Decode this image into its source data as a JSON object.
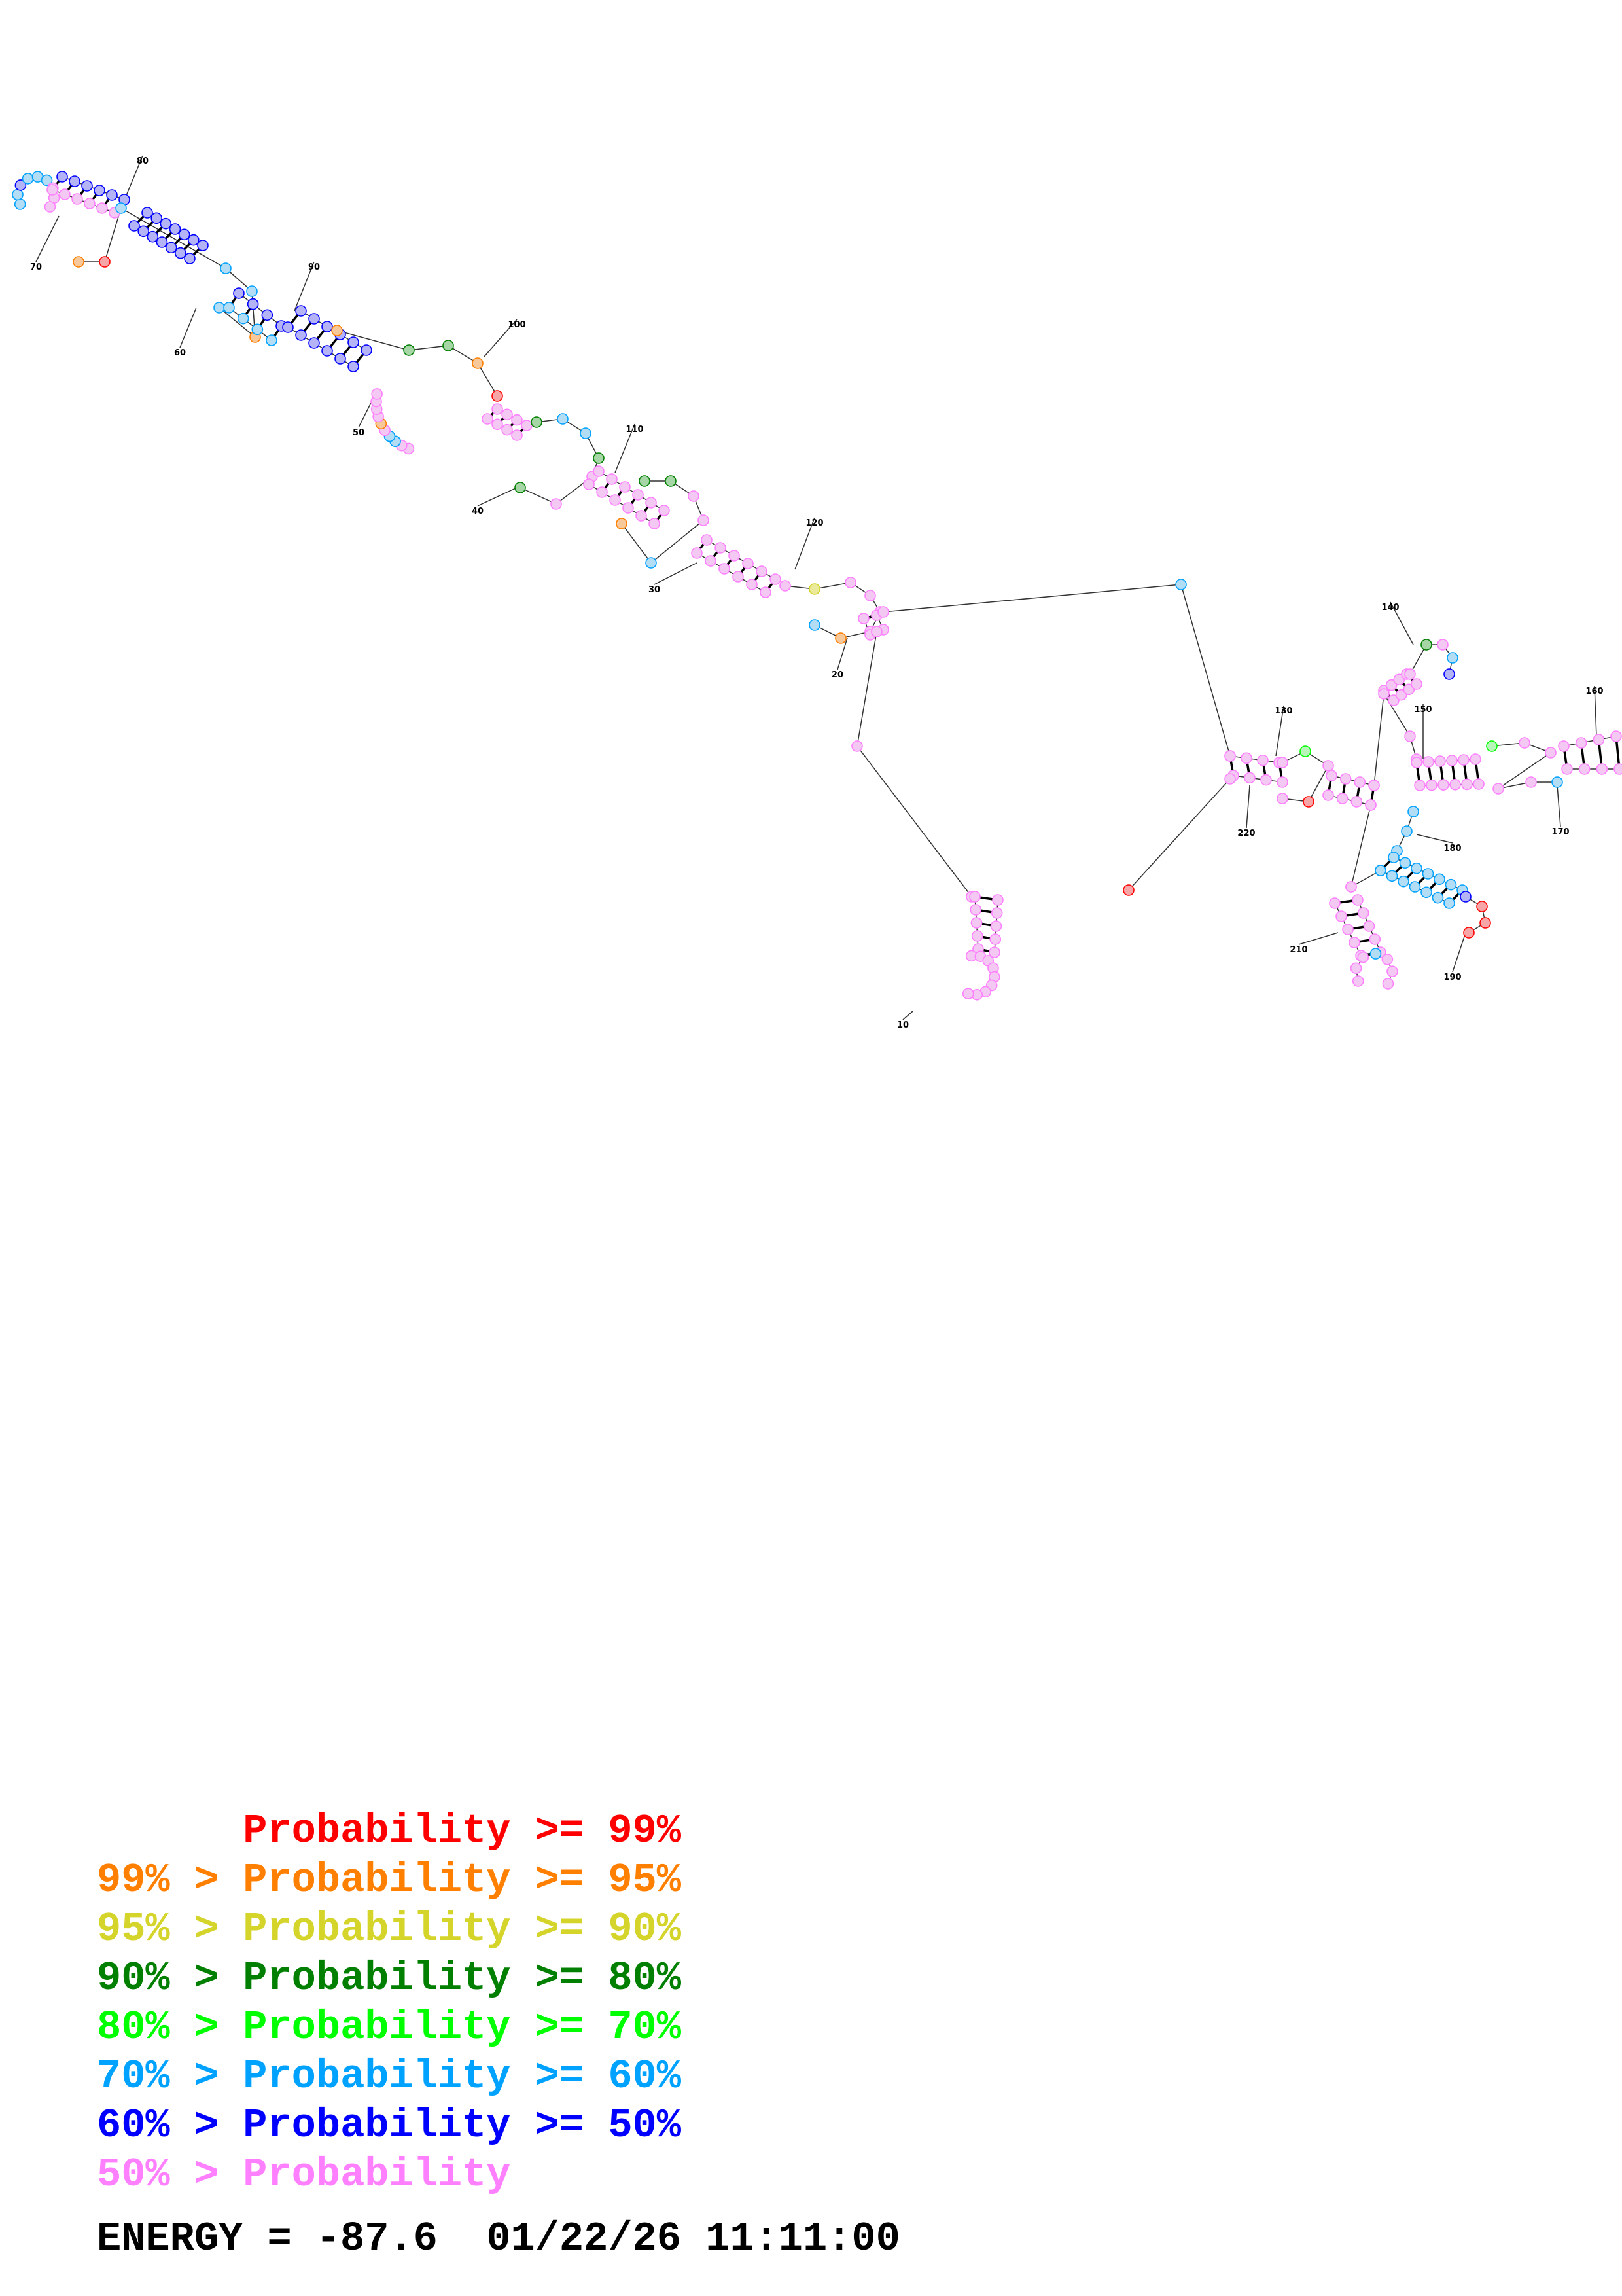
{
  "colors": {
    "p99": "#ff0000",
    "p95": "#ff7f00",
    "p90": "#d4d42a",
    "p80": "#007f00",
    "p70": "#00ff00",
    "p60": "#00a2ff",
    "p50": "#0000ff",
    "plow": "#ff80ff",
    "fill_p99": "#f6a6a6",
    "fill_p95": "#f6c89a",
    "fill_p90": "#eaea9a",
    "fill_p80": "#a6d6a6",
    "fill_p70": "#b8f5b8",
    "fill_p60": "#b3dcf5",
    "fill_p50": "#b3b3f5",
    "fill_plow": "#f3c8f3"
  },
  "legend": [
    {
      "prefix": "",
      "label": "Probability >= 99%",
      "color_key": "p99"
    },
    {
      "prefix": "99% > ",
      "label": "Probability >= 95%",
      "color_key": "p95"
    },
    {
      "prefix": "95% > ",
      "label": "Probability >= 90%",
      "color_key": "p90"
    },
    {
      "prefix": "90% > ",
      "label": "Probability >= 80%",
      "color_key": "p80"
    },
    {
      "prefix": "80% > ",
      "label": "Probability >= 70%",
      "color_key": "p70"
    },
    {
      "prefix": "70% > ",
      "label": "Probability >= 60%",
      "color_key": "p60"
    },
    {
      "prefix": "60% > ",
      "label": "Probability >= 50%",
      "color_key": "p50"
    },
    {
      "prefix": "50% > ",
      "label": "Probability",
      "color_key": "plow"
    }
  ],
  "footer": {
    "energy": "ENERGY = -87.6",
    "timestamp": "01/22/26 11:11:00"
  },
  "position_labels": [
    "10",
    "20",
    "30",
    "40",
    "50",
    "60",
    "70",
    "80",
    "90",
    "100",
    "110",
    "120",
    "130",
    "140",
    "150",
    "160",
    "170",
    "180",
    "190",
    "210",
    "220"
  ]
}
